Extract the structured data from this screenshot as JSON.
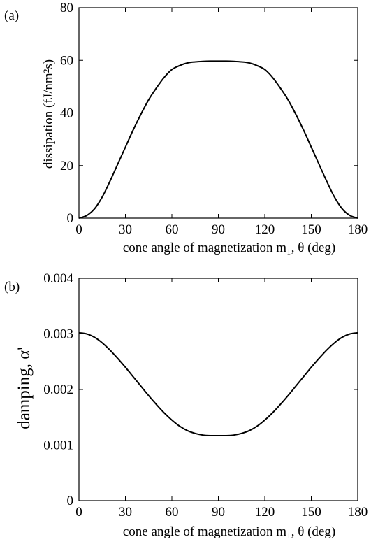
{
  "chart_data": [
    {
      "type": "line",
      "panel_label": "(a)",
      "xlabel": "cone angle of magnetization m₁, θ (deg)",
      "ylabel": "dissipation (fJ/nm²s)",
      "xlim": [
        0,
        180
      ],
      "ylim": [
        0,
        80
      ],
      "xticks": [
        "0",
        "30",
        "60",
        "90",
        "120",
        "150",
        "180"
      ],
      "yticks": [
        "0",
        "20",
        "40",
        "60",
        "80"
      ],
      "grid": false,
      "series": [
        {
          "x": [
            0,
            5,
            10,
            15,
            20,
            25,
            30,
            35,
            40,
            45,
            50,
            55,
            60,
            65,
            70,
            75,
            80,
            85,
            90,
            95,
            100,
            105,
            110,
            115,
            120,
            125,
            130,
            135,
            140,
            145,
            150,
            155,
            160,
            165,
            170,
            175,
            180
          ],
          "values": [
            0,
            1.0,
            3.5,
            8,
            14,
            20.5,
            27,
            33.5,
            39.5,
            45,
            49.5,
            53.5,
            56.5,
            58,
            59,
            59.4,
            59.6,
            59.7,
            59.7,
            59.7,
            59.6,
            59.4,
            59,
            58,
            56.5,
            53.5,
            49.5,
            45,
            39.5,
            33.5,
            27,
            20.5,
            14,
            8,
            3.5,
            1.0,
            0
          ]
        }
      ]
    },
    {
      "type": "line",
      "panel_label": "(b)",
      "xlabel": "cone angle of magnetization m₁, θ (deg)",
      "ylabel": "damping, α'",
      "xlim": [
        0,
        180
      ],
      "ylim": [
        0,
        0.004
      ],
      "xticks": [
        "0",
        "30",
        "60",
        "90",
        "120",
        "150",
        "180"
      ],
      "yticks": [
        "0",
        "0.001",
        "0.002",
        "0.003",
        "0.004"
      ],
      "grid": false,
      "series": [
        {
          "x": [
            0,
            5,
            10,
            15,
            20,
            25,
            30,
            35,
            40,
            45,
            50,
            55,
            60,
            65,
            70,
            75,
            80,
            85,
            90,
            95,
            100,
            105,
            110,
            115,
            120,
            125,
            130,
            135,
            140,
            145,
            150,
            155,
            160,
            165,
            170,
            175,
            180
          ],
          "values": [
            0.00302,
            0.003,
            0.00294,
            0.00284,
            0.00271,
            0.00256,
            0.0024,
            0.00223,
            0.00206,
            0.00189,
            0.00173,
            0.00158,
            0.00145,
            0.00134,
            0.00126,
            0.00121,
            0.00118,
            0.00117,
            0.00117,
            0.00117,
            0.00118,
            0.00121,
            0.00126,
            0.00134,
            0.00145,
            0.00158,
            0.00173,
            0.00189,
            0.00206,
            0.00223,
            0.0024,
            0.00256,
            0.00271,
            0.00284,
            0.00294,
            0.003,
            0.00302
          ]
        }
      ]
    }
  ]
}
